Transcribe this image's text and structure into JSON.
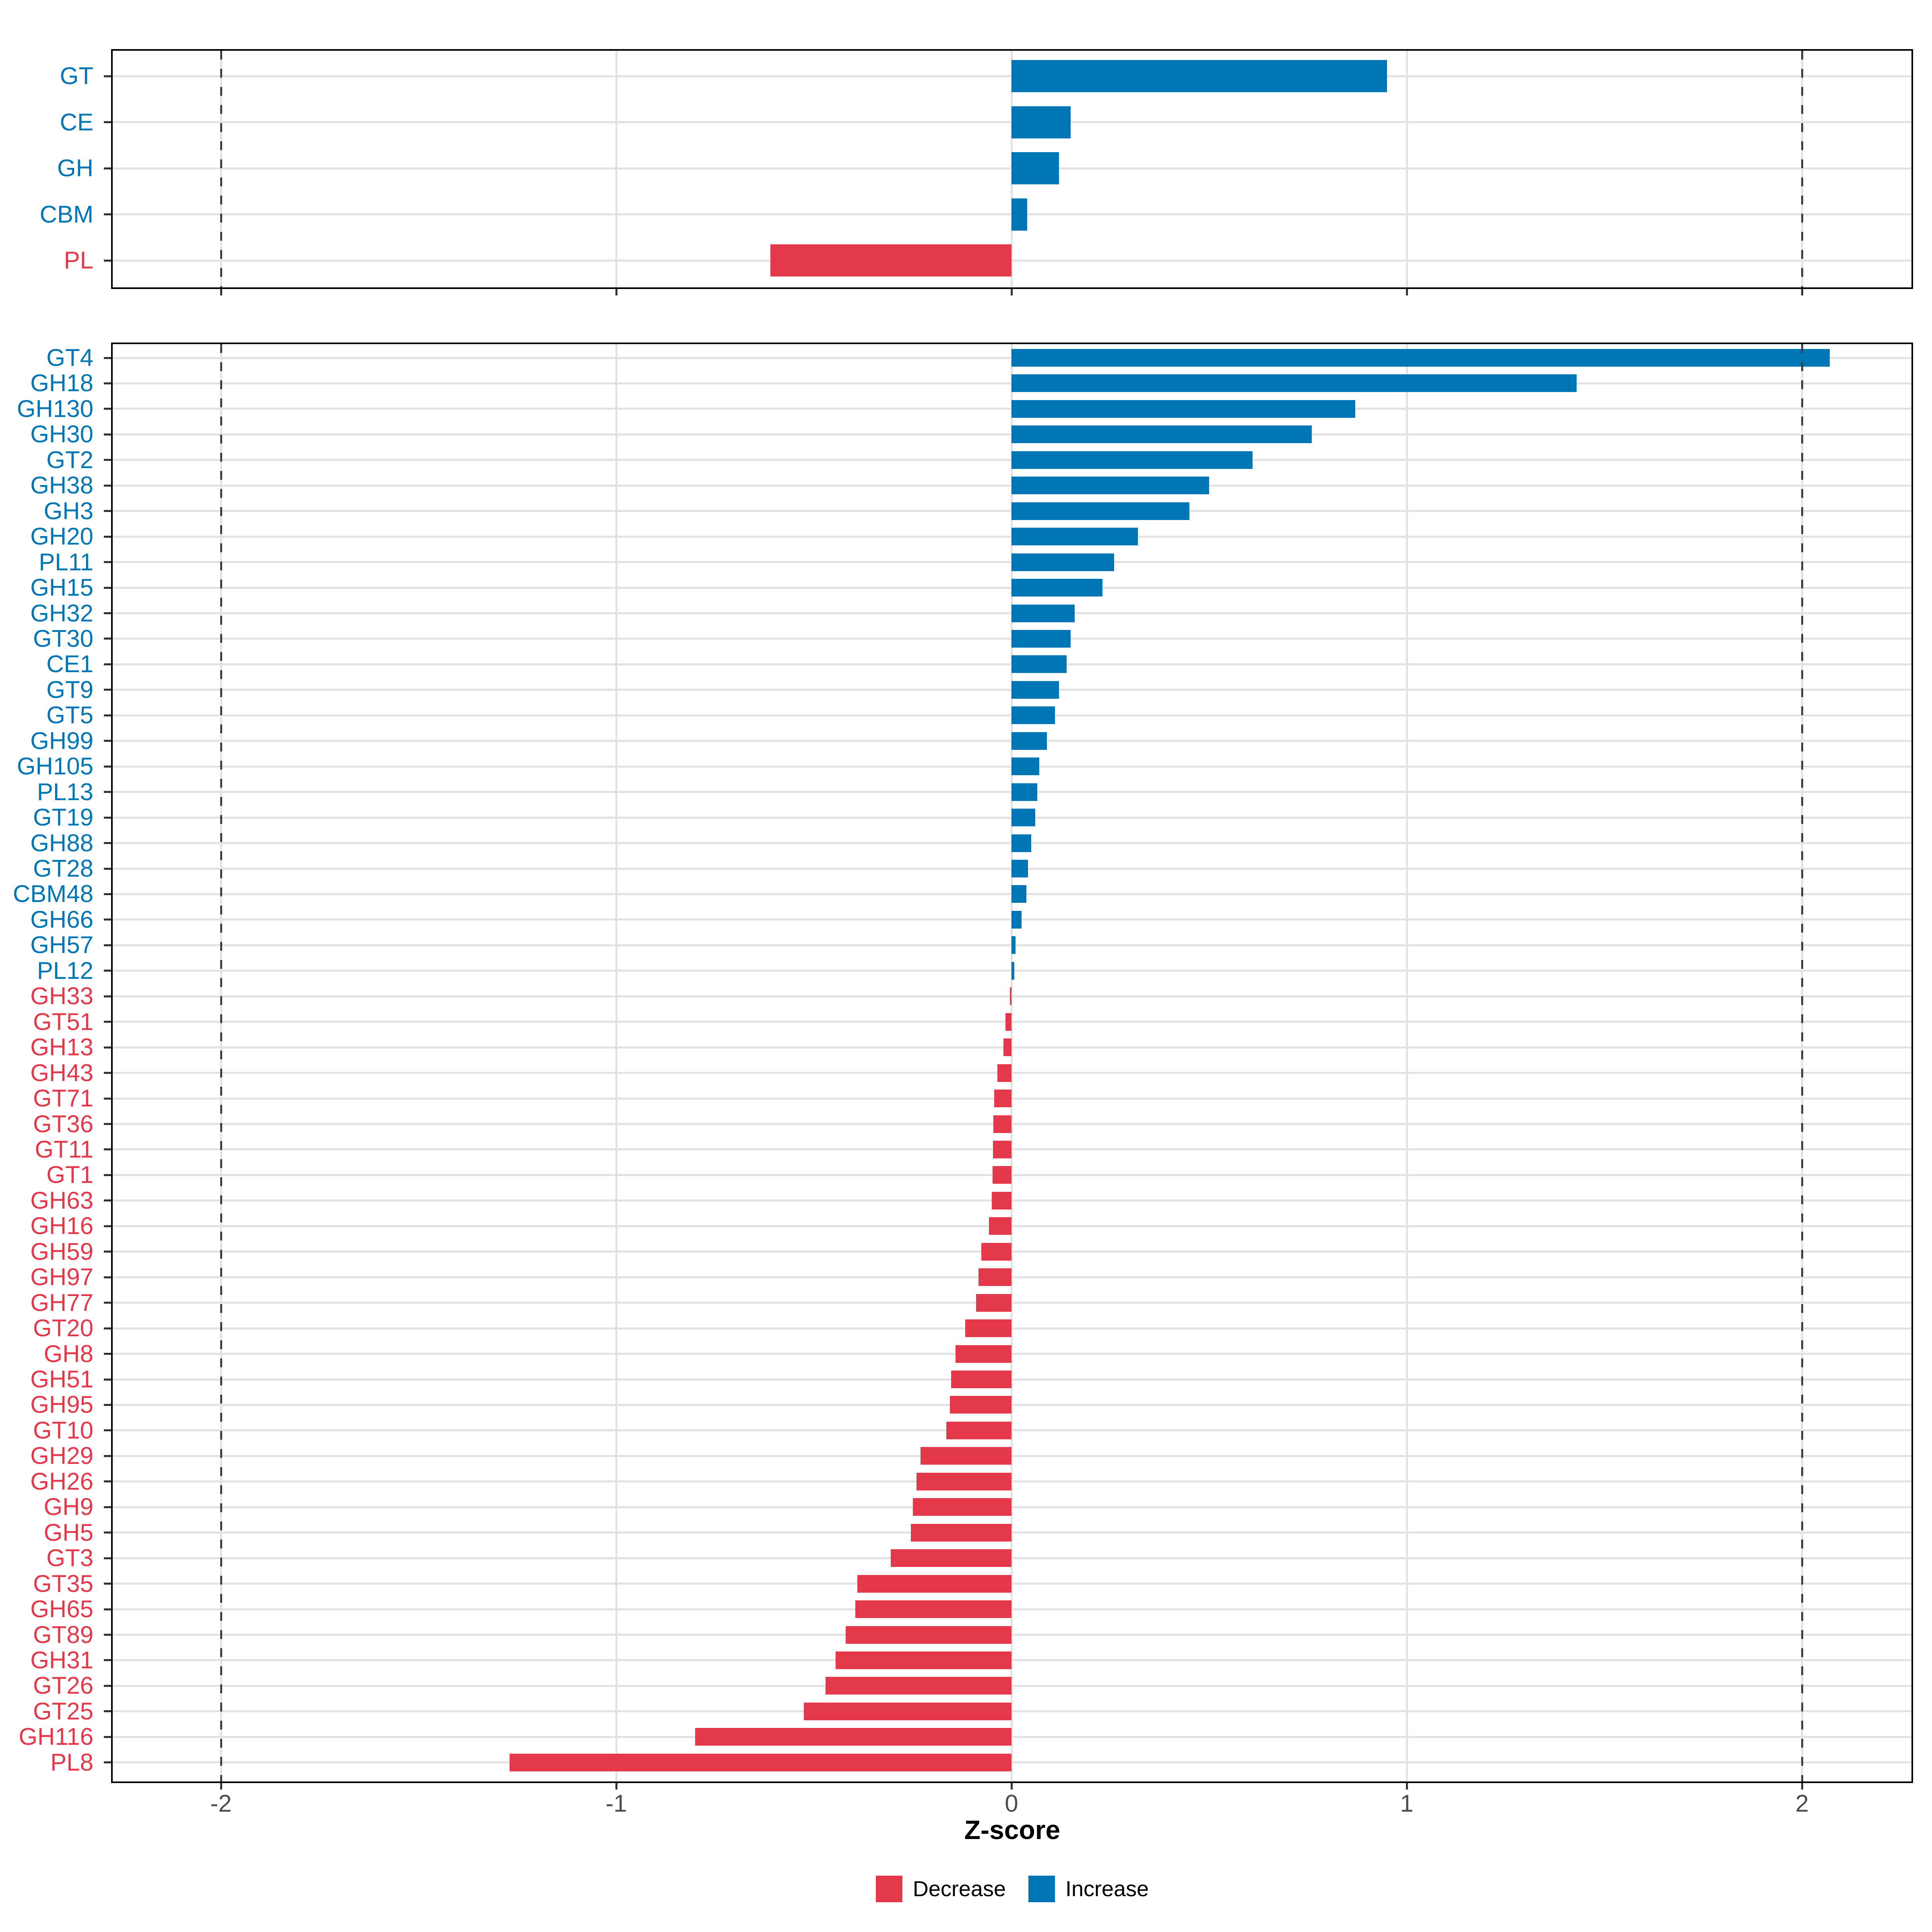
{
  "colors": {
    "increase": "#0076B4",
    "decrease": "#E3394B",
    "gridline": "#E2E2E2",
    "dashed_line": "#3F3F3F",
    "axis_text": "#4D4D4D",
    "panel_border": "#000000"
  },
  "x_axis": {
    "label": "Z-score",
    "ticks": [
      -2,
      -1,
      0,
      1,
      2
    ],
    "tick_labels": [
      "-2",
      "-1",
      "0",
      "1",
      "2"
    ],
    "range": [
      -2.28,
      2.28
    ],
    "dashed_lines": [
      -2,
      2
    ]
  },
  "legend": [
    {
      "label": "Decrease",
      "color_key": "decrease"
    },
    {
      "label": "Increase",
      "color_key": "increase"
    }
  ],
  "chart_data": [
    {
      "type": "bar",
      "orientation": "horizontal",
      "panel": "cazyme-class",
      "categories": [
        "GT",
        "CE",
        "GH",
        "CBM",
        "PL"
      ],
      "values": [
        0.95,
        0.15,
        0.12,
        0.04,
        -0.61
      ],
      "xlabel": "Z-score",
      "xlim": [
        -2.28,
        2.28
      ],
      "grid": true,
      "legend_position": "bottom"
    },
    {
      "type": "bar",
      "orientation": "horizontal",
      "panel": "cazyme-family",
      "categories": [
        "GT4",
        "GH18",
        "GH130",
        "GH30",
        "GT2",
        "GH38",
        "GH3",
        "GH20",
        "PL11",
        "GH15",
        "GH32",
        "GT30",
        "CE1",
        "GT9",
        "GT5",
        "GH99",
        "GH105",
        "PL13",
        "GT19",
        "GH88",
        "GT28",
        "CBM48",
        "GH66",
        "GH57",
        "PL12",
        "GH33",
        "GT51",
        "GH13",
        "GH43",
        "GT71",
        "GT36",
        "GT11",
        "GT1",
        "GH63",
        "GH16",
        "GH59",
        "GH97",
        "GH77",
        "GT20",
        "GH8",
        "GH51",
        "GH95",
        "GT10",
        "GH29",
        "GH26",
        "GH9",
        "GH5",
        "GT3",
        "GT35",
        "GH65",
        "GT89",
        "GH31",
        "GT26",
        "GT25",
        "GH116",
        "PL8"
      ],
      "values": [
        2.07,
        1.43,
        0.87,
        0.76,
        0.61,
        0.5,
        0.45,
        0.32,
        0.26,
        0.23,
        0.16,
        0.15,
        0.14,
        0.12,
        0.11,
        0.09,
        0.07,
        0.065,
        0.06,
        0.05,
        0.042,
        0.038,
        0.025,
        0.01,
        0.007,
        -0.004,
        -0.015,
        -0.02,
        -0.036,
        -0.044,
        -0.046,
        -0.047,
        -0.048,
        -0.05,
        -0.057,
        -0.076,
        -0.083,
        -0.09,
        -0.117,
        -0.142,
        -0.153,
        -0.156,
        -0.165,
        -0.23,
        -0.24,
        -0.25,
        -0.255,
        -0.305,
        -0.39,
        -0.395,
        -0.42,
        -0.445,
        -0.47,
        -0.525,
        -0.8,
        -1.27
      ],
      "xlabel": "Z-score",
      "xlim": [
        -2.28,
        2.28
      ],
      "grid": true,
      "legend_position": "bottom"
    }
  ]
}
